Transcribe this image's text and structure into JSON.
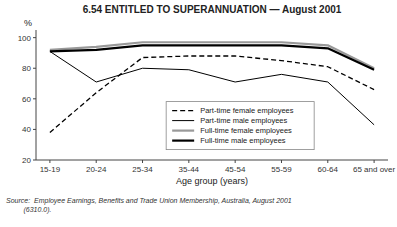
{
  "chart_data": {
    "type": "line",
    "title": "6.54   ENTITLED TO SUPERANNUATION — August 2001",
    "x_label": "Age group (years)",
    "y_label": "%",
    "annotations": [
      "Source:  Employee Earnings, Benefits and Trade Union Membership, Australia, August 2001\n         (6310.0)."
    ],
    "categories": [
      "15-19",
      "20-24",
      "25-34",
      "35-44",
      "45-54",
      "55-59",
      "60-64",
      "65 and over"
    ],
    "series": [
      {
        "name": "Part-time female employees",
        "color": "#000000",
        "line_style": "dashed",
        "values": [
          38,
          64,
          87,
          88,
          88,
          85,
          81,
          66
        ]
      },
      {
        "name": "Part-time male employees",
        "color": "#000000",
        "line_style": "solid",
        "values": [
          91,
          71,
          80,
          79,
          71,
          76,
          71,
          43
        ]
      },
      {
        "name": "Full-time female employees",
        "color": "#999999",
        "line_style": "thick",
        "values": [
          92,
          94,
          97,
          97,
          97,
          97,
          95,
          80
        ]
      },
      {
        "name": "Full-time male employees",
        "color": "#000000",
        "line_style": "thick",
        "values": [
          91,
          92,
          95,
          95,
          95,
          95,
          93,
          79
        ]
      }
    ],
    "ylim": [
      20,
      105
    ],
    "yticks": [
      20,
      40,
      60,
      80,
      100
    ],
    "grid": false,
    "legend": "bottom"
  }
}
